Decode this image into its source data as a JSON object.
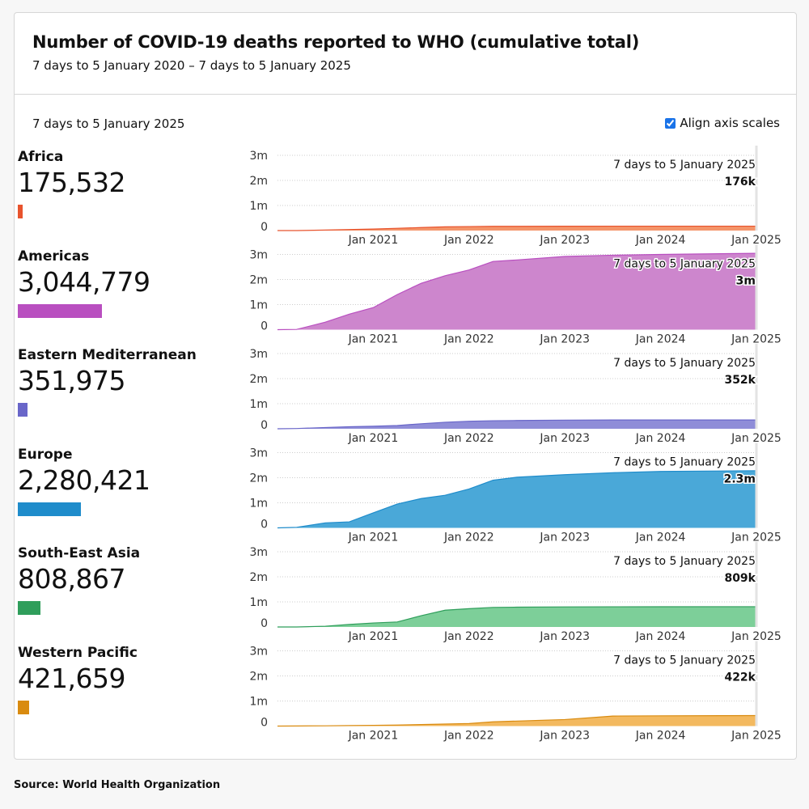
{
  "header": {
    "title": "Number of COVID-19 deaths reported to WHO (cumulative total)",
    "subtitle": "7 days to 5 January 2020 – 7 days to 5 January 2025"
  },
  "controls": {
    "period_label": "7 days to 5 January 2025",
    "align_label": "Align axis scales",
    "align_checked": true
  },
  "source": "Source: World Health Organization",
  "chart_data": {
    "type": "area",
    "y_ticks": [
      {
        "v": 0,
        "label": "0"
      },
      {
        "v": 1,
        "label": "1m"
      },
      {
        "v": 2,
        "label": "2m"
      },
      {
        "v": 3,
        "label": "3m"
      }
    ],
    "x_ticks": [
      {
        "t": 1,
        "label": "Jan 2021"
      },
      {
        "t": 2,
        "label": "Jan 2022"
      },
      {
        "t": 3,
        "label": "Jan 2023"
      },
      {
        "t": 4,
        "label": "Jan 2024"
      },
      {
        "t": 5,
        "label": "Jan 2025"
      }
    ],
    "ylim": [
      0,
      3
    ],
    "ylabel_units": "millions",
    "x_units": "years since Jan 2020",
    "x": [
      0,
      0.2,
      0.5,
      0.75,
      1.0,
      1.25,
      1.5,
      1.75,
      2.0,
      2.25,
      2.5,
      3.0,
      3.5,
      4.0,
      5.0
    ],
    "series": [
      {
        "name": "Africa",
        "total": "175,532",
        "value": 175532,
        "annotation_date": "7 days to 5 January 2025",
        "annotation_value": "176k",
        "line": "#e8532d",
        "fill": "#f4956a",
        "values": [
          0,
          0,
          0.02,
          0.04,
          0.06,
          0.09,
          0.12,
          0.15,
          0.16,
          0.17,
          0.17,
          0.174,
          0.175,
          0.175,
          0.1755
        ]
      },
      {
        "name": "Americas",
        "total": "3,044,779",
        "value": 3044779,
        "annotation_date": "7 days to 5 January 2025",
        "annotation_value": "3m",
        "line": "#b94fc0",
        "fill": "#cd86cd",
        "values": [
          0,
          0.01,
          0.3,
          0.62,
          0.88,
          1.4,
          1.85,
          2.15,
          2.38,
          2.72,
          2.78,
          2.92,
          2.97,
          3.0,
          3.045
        ]
      },
      {
        "name": "Eastern Mediterranean",
        "total": "351,975",
        "value": 351975,
        "annotation_date": "7 days to 5 January 2025",
        "annotation_value": "352k",
        "line": "#6966c9",
        "fill": "#8f8dd8",
        "values": [
          0,
          0.01,
          0.05,
          0.08,
          0.1,
          0.13,
          0.2,
          0.26,
          0.3,
          0.32,
          0.33,
          0.345,
          0.35,
          0.351,
          0.352
        ]
      },
      {
        "name": "Europe",
        "total": "2,280,421",
        "value": 2280421,
        "annotation_date": "7 days to 5 January 2025",
        "annotation_value": "2.3m",
        "line": "#1f8ccb",
        "fill": "#4aa8d8",
        "values": [
          0,
          0.02,
          0.2,
          0.24,
          0.6,
          0.95,
          1.17,
          1.3,
          1.55,
          1.9,
          2.02,
          2.12,
          2.2,
          2.25,
          2.28
        ]
      },
      {
        "name": "South-East Asia",
        "total": "808,867",
        "value": 808867,
        "annotation_date": "7 days to 5 January 2025",
        "annotation_value": "809k",
        "line": "#2f9e5b",
        "fill": "#7dcf99",
        "values": [
          0,
          0,
          0.03,
          0.1,
          0.16,
          0.2,
          0.45,
          0.67,
          0.73,
          0.78,
          0.79,
          0.8,
          0.805,
          0.807,
          0.809
        ]
      },
      {
        "name": "Western Pacific",
        "total": "421,659",
        "value": 421659,
        "annotation_date": "7 days to 5 January 2025",
        "annotation_value": "422k",
        "line": "#d98b10",
        "fill": "#f3b95f",
        "values": [
          0,
          0.005,
          0.01,
          0.02,
          0.03,
          0.04,
          0.06,
          0.08,
          0.1,
          0.17,
          0.2,
          0.26,
          0.4,
          0.41,
          0.42
        ]
      }
    ]
  }
}
